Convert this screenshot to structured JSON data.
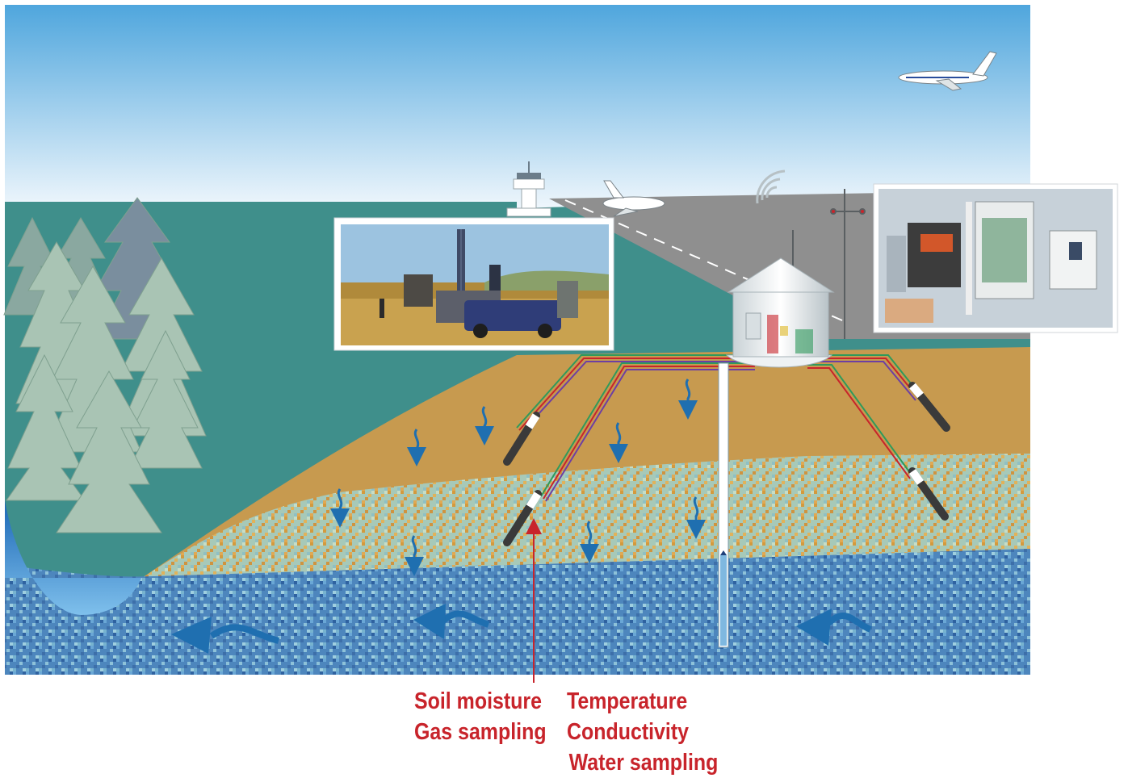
{
  "labels": {
    "left": [
      "Soil moisture",
      "Gas sampling"
    ],
    "right": [
      "Temperature",
      "Conductivity",
      "Water sampling"
    ]
  },
  "colors": {
    "sky_top": "#4fa6dd",
    "sky_bottom": "#f4f9fd",
    "land": "#3f8f8b",
    "runway": "#8f8f8f",
    "sand": "#c79a4f",
    "mixed_layer": "#9ec6b9",
    "groundwater": "#4d86bd",
    "lake": "#2b7fcc",
    "flow_arrow": "#1f6fb0",
    "label_red": "#c8242b",
    "trees": "#a9c4b4"
  },
  "icons": [
    "airplane-icon",
    "control-tower-icon",
    "radio-signal-icon",
    "monitoring-station-icon",
    "antenna-mast-icon",
    "weather-mast-icon",
    "probe-icon",
    "percolation-arrow-icon",
    "groundwater-flow-arrow-icon",
    "drilling-rig-photo",
    "instrument-cabinet-photo"
  ]
}
